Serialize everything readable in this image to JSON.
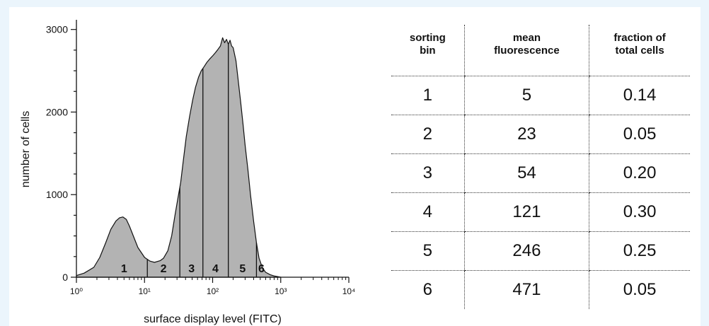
{
  "chart_data": [
    {
      "type": "area",
      "title": "",
      "xlabel": "surface display level (FITC)",
      "ylabel": "number of cells",
      "x_scale": "log",
      "xlim": [
        1,
        10000
      ],
      "ylim": [
        0,
        3100
      ],
      "x_ticks": [
        "10⁰",
        "10¹",
        "10²",
        "10³",
        "10⁴"
      ],
      "y_ticks": [
        "0",
        "1000",
        "2000",
        "3000"
      ],
      "series": [
        {
          "x": [
            1,
            1.3,
            1.8,
            2.2,
            2.7,
            3.2,
            3.8,
            4.3,
            4.8,
            5.4,
            6.0,
            7.0,
            8.0,
            10,
            12,
            14,
            17,
            19,
            22,
            25,
            28,
            31,
            34,
            37,
            41,
            46,
            51,
            56,
            62,
            68,
            75,
            82,
            90,
            100,
            110,
            120,
            130,
            140,
            150,
            160,
            170,
            180,
            190,
            200,
            220,
            240,
            260,
            280,
            300,
            330,
            360,
            400,
            440,
            480,
            540,
            600,
            700,
            800,
            1000
          ],
          "y": [
            20,
            50,
            120,
            240,
            420,
            580,
            680,
            720,
            730,
            700,
            620,
            480,
            360,
            240,
            195,
            180,
            200,
            230,
            320,
            500,
            750,
            960,
            1150,
            1400,
            1700,
            1950,
            2150,
            2300,
            2420,
            2500,
            2550,
            2600,
            2640,
            2680,
            2720,
            2760,
            2800,
            2900,
            2840,
            2880,
            2820,
            2870,
            2800,
            2780,
            2620,
            2350,
            2100,
            1850,
            1600,
            1300,
            1000,
            680,
            420,
            230,
            110,
            60,
            30,
            15,
            0
          ]
        }
      ],
      "bin_boundaries": [
        11,
        33,
        72,
        170,
        440
      ],
      "bin_labels": [
        {
          "label": "1",
          "x": 5
        },
        {
          "label": "2",
          "x": 19
        },
        {
          "label": "3",
          "x": 49
        },
        {
          "label": "4",
          "x": 110
        },
        {
          "label": "5",
          "x": 275
        },
        {
          "label": "6",
          "x": 520
        }
      ],
      "fill_color": "#b3b3b3",
      "grid": false
    },
    {
      "type": "table",
      "columns": [
        "sorting bin",
        "mean fluorescence",
        "fraction of total cells"
      ],
      "rows": [
        [
          "1",
          "5",
          "0.14"
        ],
        [
          "2",
          "23",
          "0.05"
        ],
        [
          "3",
          "54",
          "0.20"
        ],
        [
          "4",
          "121",
          "0.30"
        ],
        [
          "5",
          "246",
          "0.25"
        ],
        [
          "6",
          "471",
          "0.05"
        ]
      ]
    }
  ],
  "table": {
    "headers": [
      [
        "sorting",
        "bin"
      ],
      [
        "mean",
        "fluorescence"
      ],
      [
        "fraction of",
        "total cells"
      ]
    ]
  }
}
